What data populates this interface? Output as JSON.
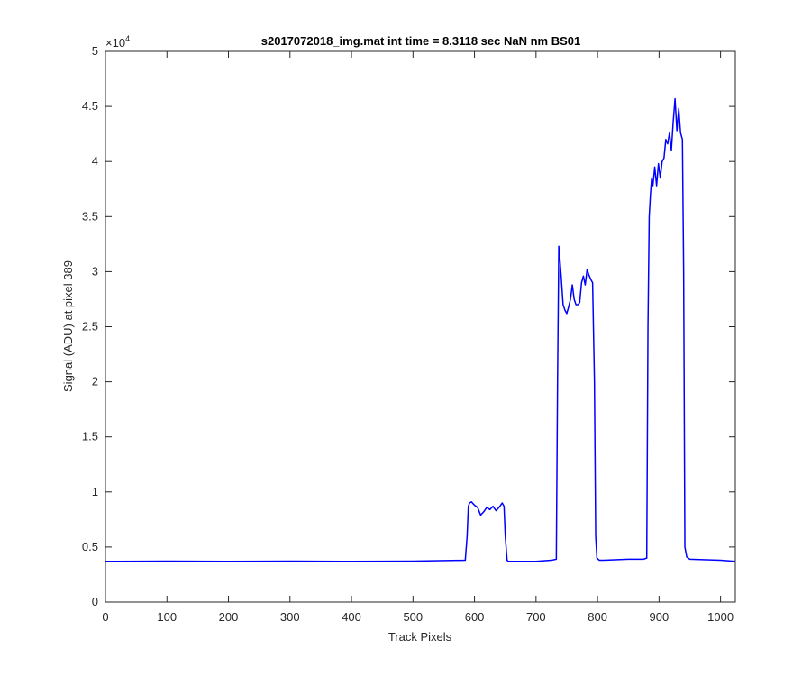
{
  "chart_data": {
    "type": "line",
    "title": "s2017072018_img.mat int time = 8.3118 sec  NaN nm BS01",
    "xlabel": "Track Pixels",
    "ylabel": "Signal (ADU) at pixel 389",
    "y_exponent_label": "×10",
    "y_exponent_power": "4",
    "xlim": [
      0,
      1024
    ],
    "ylim": [
      0,
      50000
    ],
    "grid": false,
    "legend": "none",
    "color": "#0000ff",
    "x_ticks": [
      0,
      100,
      200,
      300,
      400,
      500,
      600,
      700,
      800,
      900,
      1000
    ],
    "x_tick_labels": [
      "0",
      "100",
      "200",
      "300",
      "400",
      "500",
      "600",
      "700",
      "800",
      "900",
      "1000"
    ],
    "y_ticks": [
      0,
      5000,
      10000,
      15000,
      20000,
      25000,
      30000,
      35000,
      40000,
      45000,
      50000
    ],
    "y_tick_labels": [
      "0",
      "0.5",
      "1",
      "1.5",
      "2",
      "2.5",
      "3",
      "3.5",
      "4",
      "4.5",
      "5"
    ],
    "series": [
      {
        "x": [
          0,
          100,
          200,
          300,
          400,
          500,
          585,
          588,
          590,
          592,
          595,
          600,
          605,
          610,
          615,
          620,
          625,
          630,
          635,
          640,
          645,
          648,
          650,
          653,
          655,
          660,
          700,
          725,
          733,
          735,
          737,
          739,
          741,
          744,
          747,
          750,
          753,
          756,
          759,
          762,
          765,
          768,
          771,
          774,
          777,
          780,
          783,
          786,
          789,
          792,
          795,
          797,
          799,
          803,
          810,
          850,
          875,
          880,
          882,
          884,
          886,
          888,
          890,
          893,
          896,
          899,
          902,
          905,
          908,
          911,
          914,
          917,
          920,
          923,
          926,
          929,
          932,
          935,
          938,
          940,
          942,
          945,
          950,
          1000,
          1024
        ],
        "y": [
          3700,
          3720,
          3700,
          3720,
          3700,
          3720,
          3800,
          6000,
          8700,
          9000,
          9100,
          8800,
          8600,
          7900,
          8200,
          8600,
          8400,
          8700,
          8300,
          8600,
          9000,
          8700,
          6000,
          3800,
          3700,
          3700,
          3700,
          3800,
          3900,
          20000,
          32300,
          31000,
          29500,
          27000,
          26500,
          26200,
          26800,
          27500,
          28800,
          27500,
          27000,
          27000,
          27200,
          29000,
          29600,
          28800,
          30200,
          29700,
          29300,
          29000,
          20000,
          6000,
          4000,
          3800,
          3800,
          3900,
          3900,
          4000,
          25000,
          35000,
          37000,
          38500,
          37800,
          39500,
          37800,
          39800,
          38500,
          40000,
          40300,
          42000,
          41600,
          42600,
          41000,
          43600,
          45700,
          42800,
          44800,
          42600,
          42000,
          30000,
          5000,
          4100,
          3900,
          3800,
          3700
        ]
      }
    ]
  }
}
